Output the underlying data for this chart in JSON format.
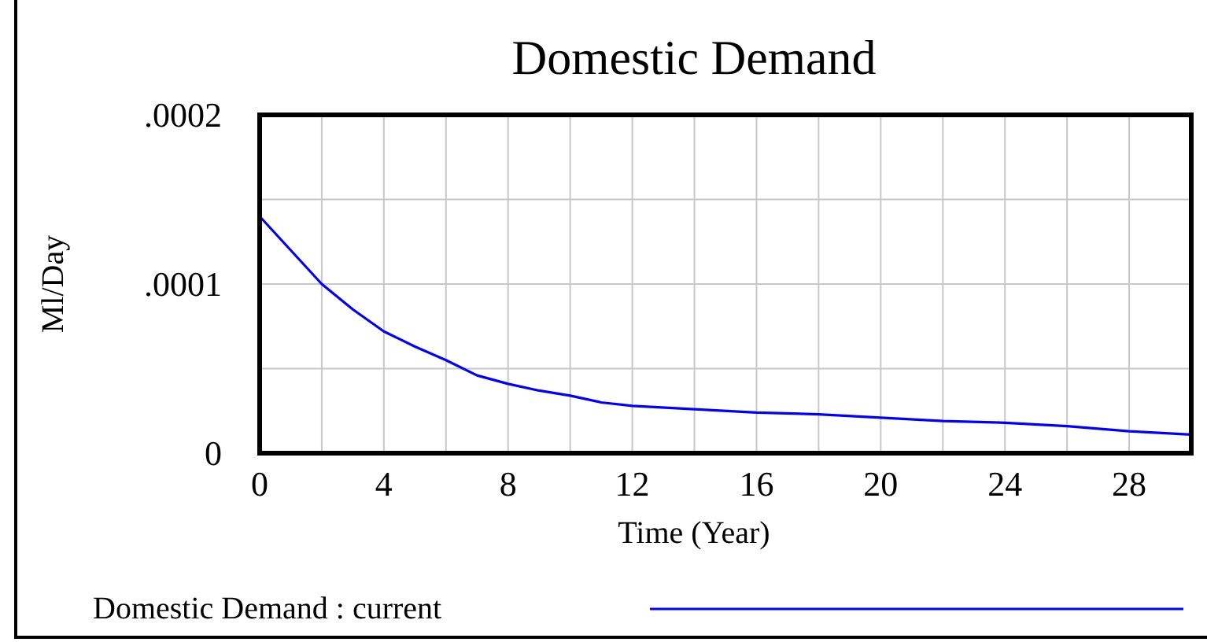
{
  "chart_data": {
    "type": "line",
    "title": "Domestic Demand",
    "xlabel": "Time (Year)",
    "ylabel": "Ml/Day",
    "xlim": [
      0,
      30
    ],
    "ylim": [
      0,
      0.0002
    ],
    "xticks": [
      0,
      {
        "value": 2,
        "label": null
      },
      4,
      {
        "value": 6,
        "label": null
      },
      8,
      {
        "value": 10,
        "label": null
      },
      12,
      {
        "value": 14,
        "label": null
      },
      16,
      {
        "value": 18,
        "label": null
      },
      20,
      {
        "value": 22,
        "label": null
      },
      24,
      {
        "value": 26,
        "label": null
      },
      28
    ],
    "yticks": [
      {
        "value": 0,
        "label": "0"
      },
      {
        "value": 5e-05,
        "label": null
      },
      {
        "value": 0.0001,
        "label": ".0001"
      },
      {
        "value": 0.00015,
        "label": null
      },
      {
        "value": 0.0002,
        "label": ".0002"
      }
    ],
    "grid": true,
    "legend": "bottom",
    "marker": "none",
    "line_style": "solid",
    "series": [
      {
        "name": "Domestic Demand : current",
        "color": "#0000ff",
        "x": [
          0,
          1,
          2,
          3,
          4,
          5,
          6,
          7,
          8,
          9,
          10,
          11,
          12,
          14,
          16,
          18,
          20,
          22,
          24,
          26,
          28,
          30
        ],
        "values": [
          0.00014,
          0.00012,
          0.0001,
          8.5e-05,
          7.2e-05,
          6.3e-05,
          5.5e-05,
          4.6e-05,
          4.1e-05,
          3.7e-05,
          3.4e-05,
          3e-05,
          2.8e-05,
          2.6e-05,
          2.4e-05,
          2.3e-05,
          2.1e-05,
          1.9e-05,
          1.8e-05,
          1.6e-05,
          1.3e-05,
          1.1e-05
        ]
      }
    ]
  }
}
